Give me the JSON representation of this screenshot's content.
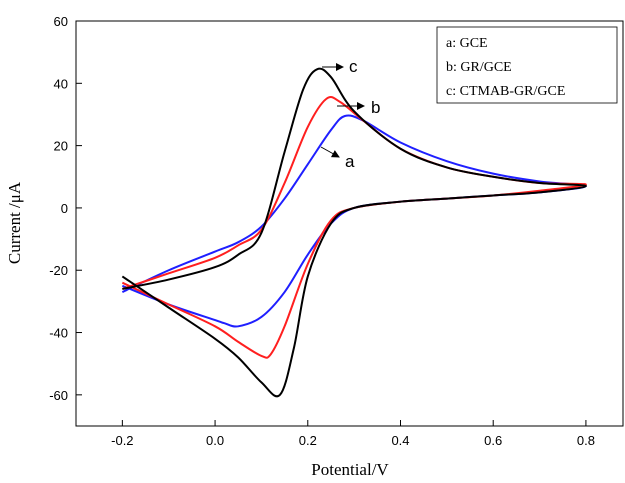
{
  "chart_data": {
    "type": "line",
    "title": "",
    "xlabel": "Potential/V",
    "ylabel": "Current /μA",
    "xlim": [
      -0.3,
      0.88
    ],
    "ylim": [
      -70,
      60
    ],
    "xticks": [
      "-0.2",
      "0.0",
      "0.2",
      "0.4",
      "0.6",
      "0.8"
    ],
    "xtick_values": [
      -0.2,
      0.0,
      0.2,
      0.4,
      0.6,
      0.8
    ],
    "yticks": [
      "-60",
      "-40",
      "-20",
      "0",
      "20",
      "40",
      "60"
    ],
    "ytick_values": [
      -60,
      -40,
      -20,
      0,
      20,
      40,
      60
    ],
    "grid": false,
    "legend_position": "top-right",
    "legend": [
      "a: GCE",
      "b: GR/GCE",
      "c: CTMAB-GR/GCE"
    ],
    "series": [
      {
        "label": "a",
        "color": "#1f1fff",
        "x": [
          -0.2,
          -0.1,
          0.0,
          0.05,
          0.1,
          0.15,
          0.2,
          0.25,
          0.28,
          0.32,
          0.4,
          0.5,
          0.6,
          0.7,
          0.8,
          0.7,
          0.6,
          0.5,
          0.4,
          0.3,
          0.25,
          0.2,
          0.15,
          0.1,
          0.05,
          0.02,
          0.0,
          -0.1,
          -0.2
        ],
        "y": [
          -27,
          -20,
          -14,
          -11,
          -6,
          3,
          14,
          25,
          29.5,
          28,
          21,
          15,
          11,
          8.5,
          7,
          5,
          4,
          3,
          2,
          0,
          -5,
          -15,
          -27,
          -35,
          -38,
          -37,
          -36,
          -31,
          -25
        ]
      },
      {
        "label": "b",
        "color": "#ff1f1f",
        "x": [
          -0.2,
          -0.1,
          0.0,
          0.05,
          0.1,
          0.15,
          0.2,
          0.24,
          0.27,
          0.32,
          0.4,
          0.5,
          0.6,
          0.7,
          0.8,
          0.7,
          0.6,
          0.5,
          0.4,
          0.3,
          0.25,
          0.2,
          0.15,
          0.12,
          0.1,
          0.05,
          0.0,
          -0.1,
          -0.2
        ],
        "y": [
          -26,
          -21,
          -16,
          -12,
          -7,
          8,
          26,
          35,
          34,
          28,
          19,
          13,
          10,
          8,
          7.5,
          5.5,
          4,
          3,
          2,
          0,
          -4,
          -18,
          -38,
          -47,
          -47.5,
          -43,
          -38,
          -31,
          -24
        ]
      },
      {
        "label": "c",
        "color": "#000000",
        "x": [
          -0.2,
          -0.1,
          0.0,
          0.05,
          0.1,
          0.15,
          0.19,
          0.22,
          0.25,
          0.3,
          0.4,
          0.5,
          0.6,
          0.7,
          0.8,
          0.7,
          0.6,
          0.5,
          0.4,
          0.3,
          0.25,
          0.2,
          0.17,
          0.14,
          0.1,
          0.05,
          0.0,
          -0.1,
          -0.2
        ],
        "y": [
          -26,
          -23,
          -19,
          -15,
          -8,
          18,
          38,
          44.5,
          42,
          31,
          19,
          13,
          10,
          8,
          7,
          5,
          4,
          3,
          2,
          0,
          -5,
          -22,
          -45,
          -60,
          -56,
          -48,
          -42,
          -32,
          -22
        ]
      }
    ],
    "annotations": [
      "c",
      "b",
      "a"
    ]
  }
}
